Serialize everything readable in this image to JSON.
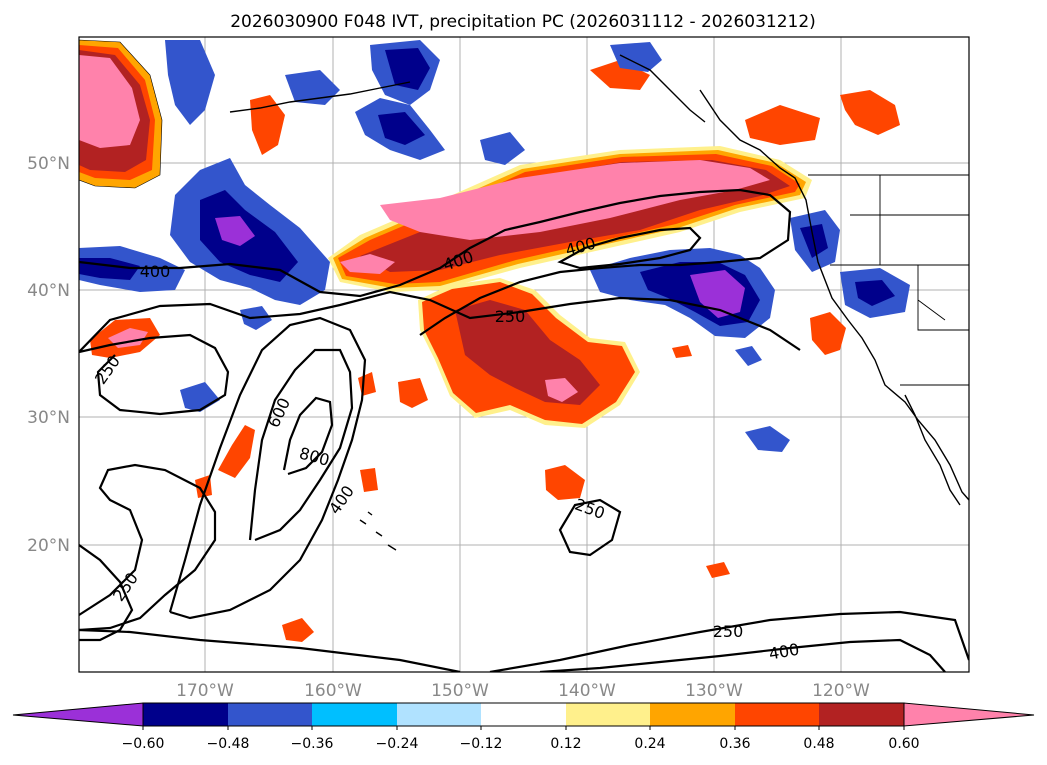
{
  "title": "2026030900 F048 IVT, precipitation PC (2026031112 - 2026031212)",
  "axes": {
    "lat_labels": [
      "50°N",
      "40°N",
      "30°N",
      "20°N"
    ],
    "lon_labels": [
      "170°W",
      "160°W",
      "150°W",
      "140°W",
      "130°W",
      "120°W"
    ]
  },
  "contour_labels": [
    "400",
    "400",
    "400",
    "250",
    "250",
    "600",
    "800",
    "400",
    "250",
    "250",
    "250",
    "400"
  ],
  "colorbar": {
    "ticks": [
      "−0.60",
      "−0.48",
      "−0.36",
      "−0.24",
      "−0.12",
      "0.12",
      "0.24",
      "0.36",
      "0.48",
      "0.60"
    ],
    "colors": [
      "#9b30d8",
      "#00008b",
      "#3355cc",
      "#00bfff",
      "#b0e2ff",
      "#ffffff",
      "#fff08c",
      "#ffa500",
      "#ff4500",
      "#b22222",
      "#ff82ab"
    ]
  },
  "chart_data": {
    "type": "map",
    "title": "2026030900 F048 IVT, precipitation PC (2026031112 - 2026031212)",
    "region": {
      "lon_range": [
        -180,
        -110
      ],
      "lat_range": [
        10,
        60
      ]
    },
    "fields": [
      "IVT contours",
      "precipitation PC shading"
    ],
    "ivt_contour_levels": [
      250,
      400,
      600,
      800
    ],
    "pc_levels": [
      -0.6,
      -0.48,
      -0.36,
      -0.24,
      -0.12,
      0.12,
      0.24,
      0.36,
      0.48,
      0.6
    ],
    "extend": "both"
  }
}
